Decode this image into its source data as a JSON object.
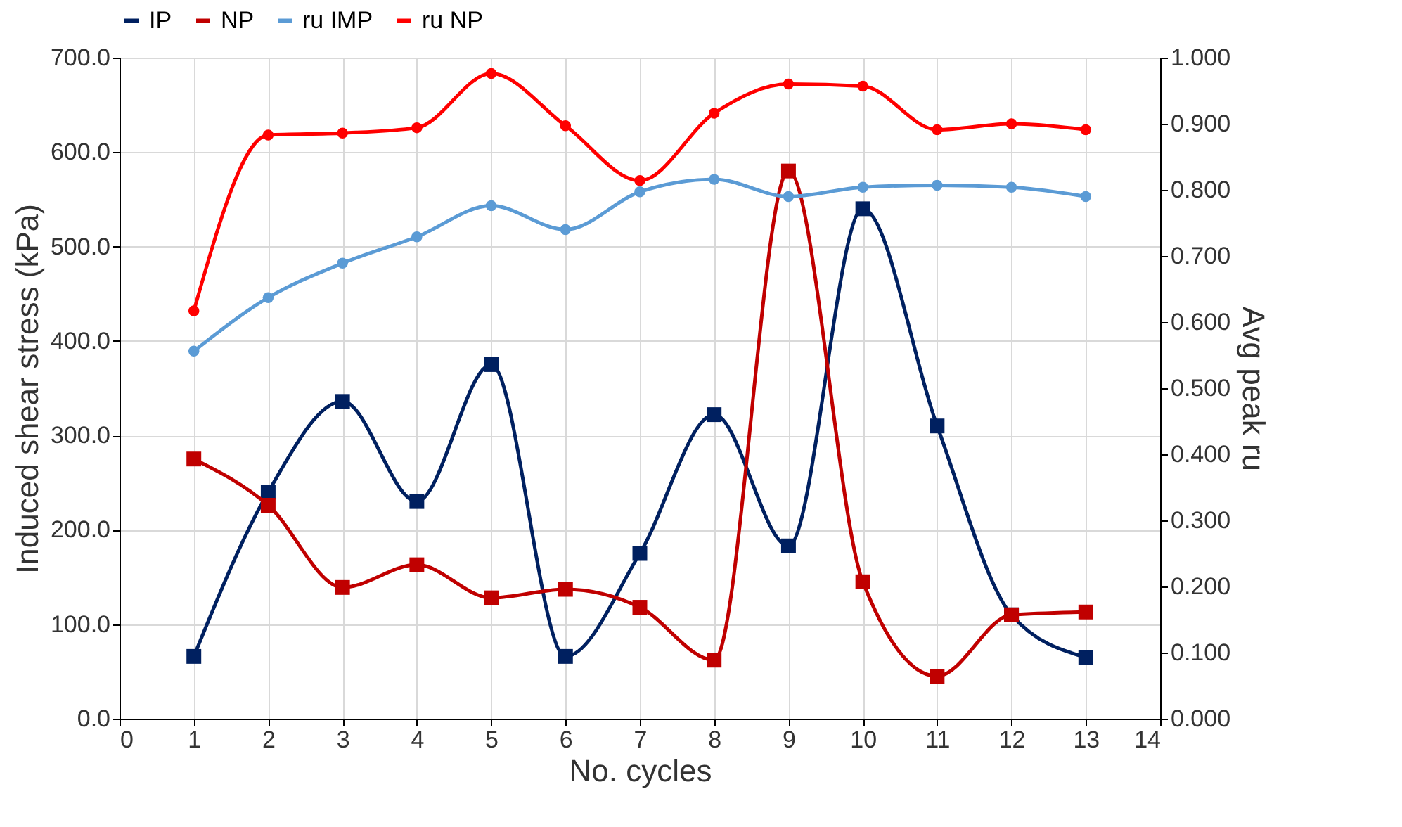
{
  "chart_data": {
    "type": "line",
    "xlabel": "No. cycles",
    "ylabel": "Induced shear stress (kPa)",
    "y2label": "Avg peak ru",
    "x": [
      1,
      2,
      3,
      4,
      5,
      6,
      7,
      8,
      9,
      10,
      11,
      12,
      13
    ],
    "series": [
      {
        "name": "IP",
        "color": "#002060",
        "marker": "square",
        "values": [
          66,
          240,
          336,
          230,
          375,
          66,
          175,
          322,
          183,
          540,
          310,
          110,
          65
        ]
      },
      {
        "name": "NP",
        "color": "#c00000",
        "marker": "square",
        "values": [
          275,
          226,
          139,
          163,
          128,
          137,
          118,
          62,
          580,
          145,
          45,
          110,
          113
        ]
      },
      {
        "name": "ru IMP",
        "color": "#5b9bd5",
        "marker": "circle",
        "axis": "y2",
        "values": [
          0.556,
          0.637,
          0.689,
          0.729,
          0.776,
          0.74,
          0.797,
          0.816,
          0.79,
          0.804,
          0.807,
          0.804,
          0.79
        ]
      },
      {
        "name": "ru NP",
        "color": "#ff0000",
        "marker": "circle",
        "axis": "y2",
        "values": [
          0.617,
          0.883,
          0.886,
          0.894,
          0.976,
          0.897,
          0.814,
          0.916,
          0.96,
          0.957,
          0.891,
          0.9,
          0.891
        ]
      }
    ],
    "xlim": [
      0,
      14
    ],
    "xticks": [
      0,
      1,
      2,
      3,
      4,
      5,
      6,
      7,
      8,
      9,
      10,
      11,
      12,
      13,
      14
    ],
    "ylim": [
      0,
      700
    ],
    "yticks": [
      {
        "value": 0,
        "label": "0.0"
      },
      {
        "value": 100,
        "label": "100.0"
      },
      {
        "value": 200,
        "label": "200.0"
      },
      {
        "value": 300,
        "label": "300.0"
      },
      {
        "value": 400,
        "label": "400.0"
      },
      {
        "value": 500,
        "label": "500.0"
      },
      {
        "value": 600,
        "label": "600.0"
      },
      {
        "value": 700,
        "label": "700.0"
      }
    ],
    "y2lim": [
      0,
      1
    ],
    "y2ticks": [
      {
        "value": 0,
        "label": "0.000"
      },
      {
        "value": 0.1,
        "label": "0.100"
      },
      {
        "value": 0.2,
        "label": "0.200"
      },
      {
        "value": 0.3,
        "label": "0.300"
      },
      {
        "value": 0.4,
        "label": "0.400"
      },
      {
        "value": 0.5,
        "label": "0.500"
      },
      {
        "value": 0.6,
        "label": "0.600"
      },
      {
        "value": 0.7,
        "label": "0.700"
      },
      {
        "value": 0.8,
        "label": "0.800"
      },
      {
        "value": 0.9,
        "label": "0.900"
      },
      {
        "value": 1,
        "label": "1.000"
      }
    ],
    "grid": true,
    "legend": "top",
    "line_style": "solid"
  }
}
